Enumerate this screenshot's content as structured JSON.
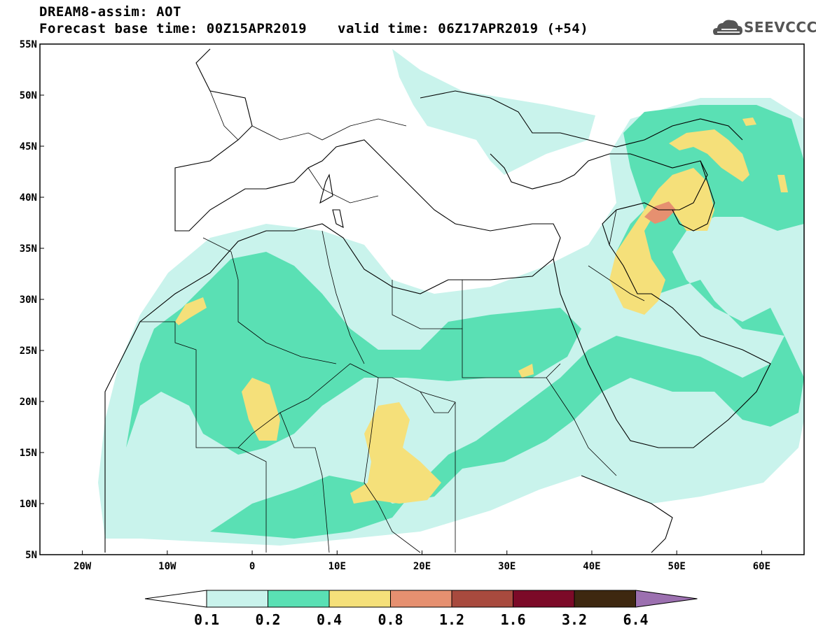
{
  "header": {
    "title": "DREAM8-assim: AOT",
    "base_time": "Forecast base time: 00Z15APR2019",
    "valid_time": "valid time: 06Z17APR2019 (+54)",
    "logo_text": "SEEVCCC"
  },
  "map": {
    "lat_range": [
      5,
      55
    ],
    "lon_range": [
      -25,
      65
    ],
    "lat_ticks": [
      {
        "value": 55,
        "label": "55N"
      },
      {
        "value": 50,
        "label": "50N"
      },
      {
        "value": 45,
        "label": "45N"
      },
      {
        "value": 40,
        "label": "40N"
      },
      {
        "value": 35,
        "label": "35N"
      },
      {
        "value": 30,
        "label": "30N"
      },
      {
        "value": 25,
        "label": "25N"
      },
      {
        "value": 20,
        "label": "20N"
      },
      {
        "value": 15,
        "label": "15N"
      },
      {
        "value": 10,
        "label": "10N"
      },
      {
        "value": 5,
        "label": "5N"
      }
    ],
    "lon_ticks": [
      {
        "value": -20,
        "label": "20W"
      },
      {
        "value": -10,
        "label": "10W"
      },
      {
        "value": 0,
        "label": "0"
      },
      {
        "value": 10,
        "label": "10E"
      },
      {
        "value": 20,
        "label": "20E"
      },
      {
        "value": 30,
        "label": "30E"
      },
      {
        "value": 40,
        "label": "40E"
      },
      {
        "value": 50,
        "label": "50E"
      },
      {
        "value": 60,
        "label": "60E"
      }
    ]
  },
  "colorbar": {
    "colors": [
      "#c9f3ec",
      "#5ae0b4",
      "#f5e07a",
      "#e69070",
      "#a84a3e",
      "#7c0a28",
      "#3e2810",
      "#9c70b0"
    ],
    "under_color": "#ffffff",
    "labels": [
      "0.1",
      "0.2",
      "0.4",
      "0.8",
      "1.2",
      "1.6",
      "3.2",
      "6.4"
    ]
  }
}
